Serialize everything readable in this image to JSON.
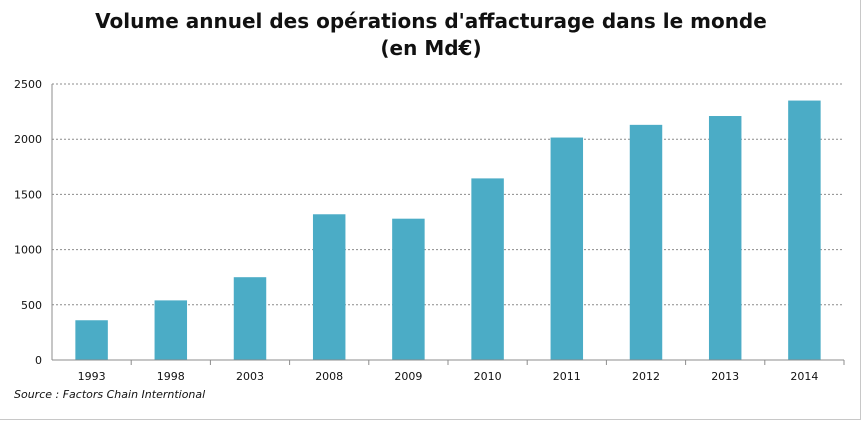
{
  "chart_data": {
    "type": "bar",
    "title_line1": "Volume annuel des opérations d'affacturage dans le monde",
    "title_line2": "(en Md€)",
    "categories": [
      "1993",
      "1998",
      "2003",
      "2008",
      "2009",
      "2010",
      "2011",
      "2012",
      "2013",
      "2014"
    ],
    "values": [
      360,
      540,
      750,
      1320,
      1280,
      1645,
      2015,
      2130,
      2210,
      2350
    ],
    "ylim": [
      0,
      2500
    ],
    "yticks": [
      0,
      500,
      1000,
      1500,
      2000,
      2500
    ],
    "grid": true,
    "bar_color": "#4bacc6",
    "source": "Source :  Factors Chain Interntional"
  }
}
